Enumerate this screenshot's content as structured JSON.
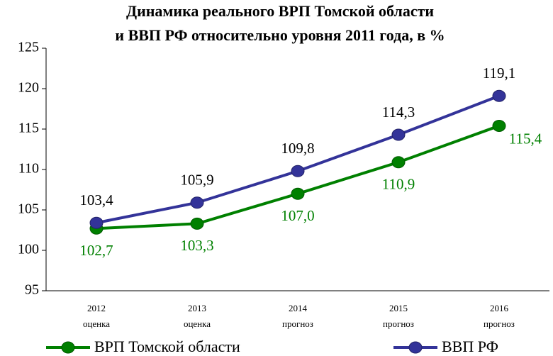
{
  "chart_data": {
    "type": "line",
    "title": [
      "Динамика реального ВРП Томской области",
      "и ВВП РФ относительно уровня 2011 года, в %"
    ],
    "categories": [
      [
        "2012",
        "оценка"
      ],
      [
        "2013",
        "оценка"
      ],
      [
        "2014",
        "прогноз"
      ],
      [
        "2015",
        "прогноз"
      ],
      [
        "2016",
        "прогноз"
      ]
    ],
    "series": [
      {
        "name": "ВРП Томской области",
        "color": "#008000",
        "values": [
          102.7,
          103.3,
          107.0,
          110.9,
          115.4
        ],
        "value_labels": [
          "102,7",
          "103,3",
          "107,0",
          "110,9",
          "115,4"
        ]
      },
      {
        "name": "ВВП РФ",
        "color": "#333399",
        "values": [
          103.4,
          105.9,
          109.8,
          114.3,
          119.1
        ],
        "value_labels": [
          "103,4",
          "105,9",
          "109,8",
          "114,3",
          "119,1"
        ]
      }
    ],
    "ylim": [
      95,
      125
    ],
    "yticks": [
      95,
      100,
      105,
      110,
      115,
      120,
      125
    ],
    "grid": false,
    "legend": "bottom"
  }
}
